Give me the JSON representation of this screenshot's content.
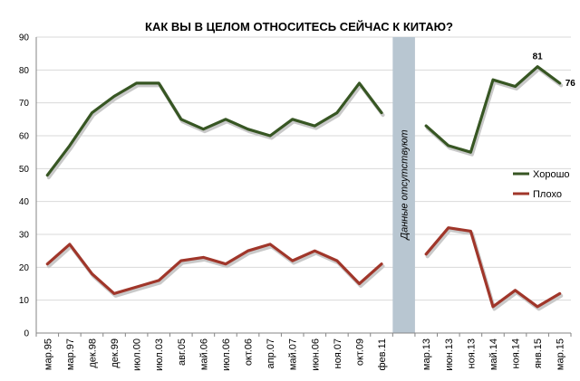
{
  "chart_data": {
    "type": "line",
    "title": "КАК ВЫ В ЦЕЛОМ ОТНОСИТЕСЬ СЕЙЧАС К КИТАЮ?",
    "xlabel": "",
    "ylabel": "",
    "ylim": [
      0,
      90
    ],
    "yticks": [
      0,
      10,
      20,
      30,
      40,
      50,
      60,
      70,
      80,
      90
    ],
    "grid": true,
    "legend_position": "right",
    "categories": [
      "мар.95",
      "мар.97",
      "дек.98",
      "дек.99",
      "июл.00",
      "июл.03",
      "авг.05",
      "май.06",
      "июл.06",
      "окт.06",
      "апр.07",
      "май.07",
      "июн.06",
      "ноя.07",
      "окт.09",
      "фев.11",
      "",
      "мар.13",
      "июн.13",
      "ноя.13",
      "май.14",
      "ноя.14",
      "янв.15",
      "мар.15"
    ],
    "series": [
      {
        "name": "Хорошо",
        "color": "#375623",
        "values": [
          48,
          57,
          67,
          72,
          76,
          76,
          65,
          62,
          65,
          62,
          60,
          65,
          63,
          67,
          76,
          67,
          null,
          63,
          57,
          55,
          77,
          75,
          81,
          76
        ]
      },
      {
        "name": "Плохо",
        "color": "#a0362a",
        "values": [
          21,
          27,
          18,
          12,
          14,
          16,
          22,
          23,
          21,
          25,
          27,
          22,
          25,
          22,
          15,
          21,
          null,
          24,
          32,
          31,
          8,
          13,
          8,
          12
        ]
      }
    ],
    "gap": {
      "label": "Данные отсутствуют",
      "after_index": 15
    },
    "annotations": [
      {
        "series": "Хорошо",
        "index": 22,
        "text": "81"
      },
      {
        "series": "Хорошо",
        "index": 23,
        "text": "76"
      }
    ]
  }
}
